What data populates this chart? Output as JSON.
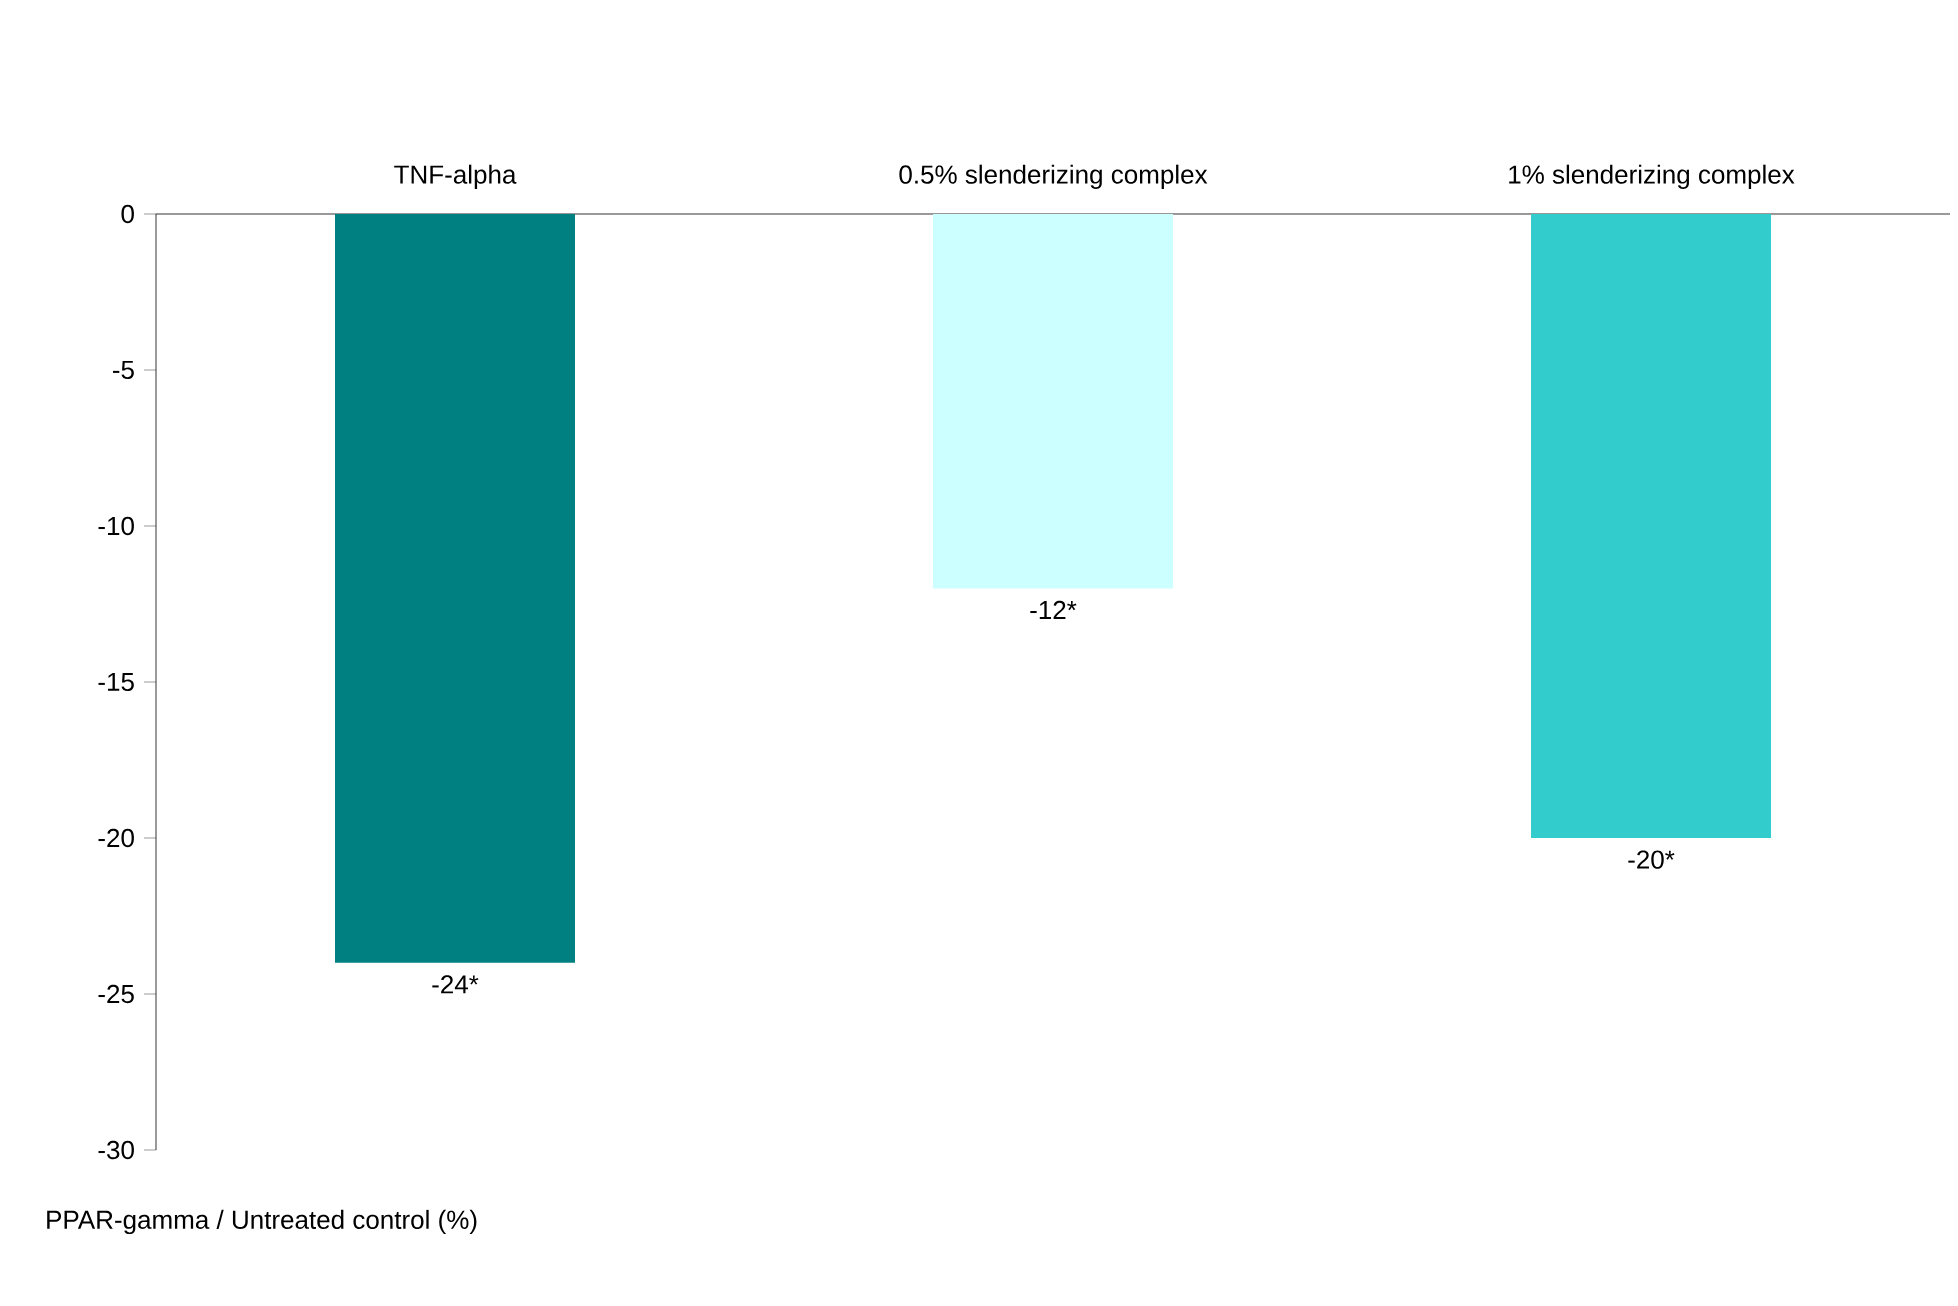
{
  "chart_data": {
    "type": "bar",
    "categories": [
      "TNF-alpha",
      "0.5% slenderizing complex",
      "1% slenderizing complex"
    ],
    "values": [
      -24,
      -12,
      -20
    ],
    "colors": [
      "#008080",
      "#ccffff",
      "#33cccc"
    ],
    "value_labels": [
      "-24*",
      "-12*",
      "-20*"
    ],
    "ylabel": "PPAR-gamma / Untreated control (%)",
    "ylim": [
      -30,
      0
    ],
    "yticks": [
      0,
      -5,
      -10,
      -15,
      -20,
      -25,
      -30
    ],
    "grid": false
  }
}
